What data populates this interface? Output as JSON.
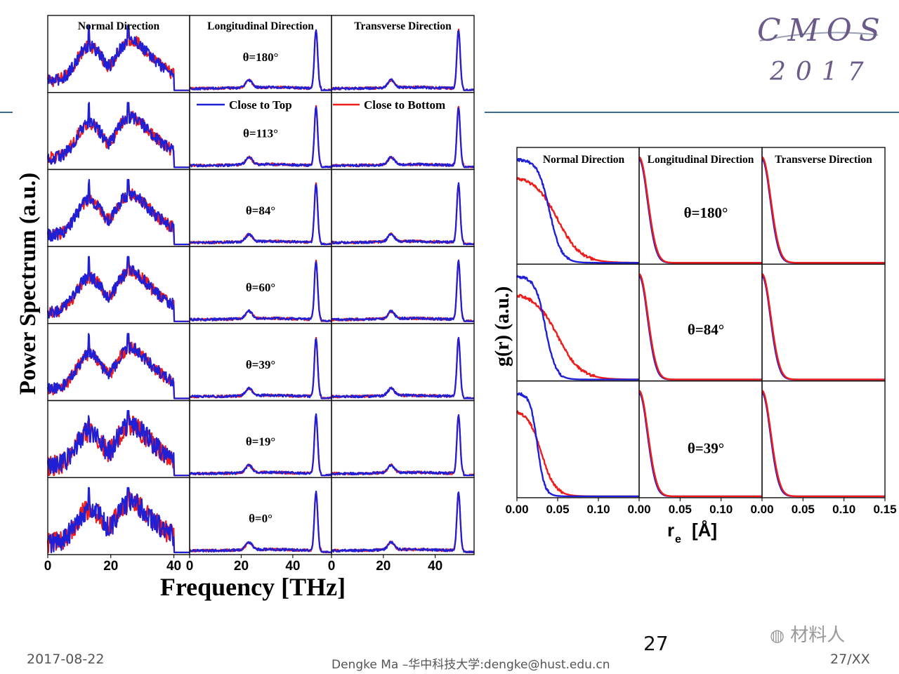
{
  "logo": {
    "line1": "CMOS",
    "line2": "2017"
  },
  "colors": {
    "top": "#1f1fd6",
    "bottom": "#ef1c1c",
    "rule": "#3b6e96"
  },
  "legend": {
    "close_to_top": "Close to Top",
    "close_to_bottom": "Close to Bottom"
  },
  "footer": {
    "date": "2017-08-22",
    "author": "Dengke Ma –华中科技大学:dengke@hust.edu.cn",
    "page_total": "27/XX",
    "page_number": "27"
  },
  "watermark": "材料人",
  "chart_data": [
    {
      "type": "line",
      "ylabel": "Power Spectrum (a.u.)",
      "xlabel": "Frequency [THz]",
      "columns": [
        "Normal Direction",
        "Longitudinal Direction",
        "Transverse Direction"
      ],
      "rows_theta": [
        "θ=180°",
        "θ=113°",
        "θ=84°",
        "θ=60°",
        "θ=39°",
        "θ=19°",
        "θ=0°"
      ],
      "column_xlim": [
        [
          0,
          45
        ],
        [
          0,
          55
        ],
        [
          0,
          55
        ]
      ],
      "column_xticks": [
        [
          "0",
          "20",
          "40"
        ],
        [
          "0",
          "20",
          "40"
        ],
        [
          "0",
          "20",
          "40"
        ]
      ],
      "column_xtick_values": [
        [
          0,
          20,
          40
        ],
        [
          0,
          20,
          40
        ],
        [
          0,
          20,
          40
        ]
      ],
      "normal_peaks_THz": [
        13,
        25.5
      ],
      "normal_cutoff_THz": 40,
      "inplane_peak_THz": 49,
      "inplane_minor_peak_THz": 23,
      "series": [
        {
          "name": "Close to Top",
          "color": "#1f1fd6"
        },
        {
          "name": "Close to Bottom",
          "color": "#ef1c1c"
        }
      ]
    },
    {
      "type": "line",
      "ylabel": "g(r) (a.u.)",
      "xlabel": "r",
      "xlabel_sub": "e",
      "xlabel_unit": "[Å]",
      "columns": [
        "Normal Direction",
        "Longitudinal Direction",
        "Transverse Direction"
      ],
      "rows_theta": [
        "θ=180°",
        "θ=84°",
        "θ=39°"
      ],
      "xlim": [
        0,
        0.15
      ],
      "xticks": [
        "0.00",
        "0.05",
        "0.10",
        "0.15"
      ],
      "panel_xticks": [
        "0.00",
        "0.05",
        "0.10"
      ],
      "normal_blue_halfwidth_A": [
        0.04,
        0.035,
        0.025
      ],
      "normal_red_halfwidth_A": [
        0.05,
        0.05,
        0.03
      ],
      "inplane_halfwidth_A": 0.012
    }
  ]
}
